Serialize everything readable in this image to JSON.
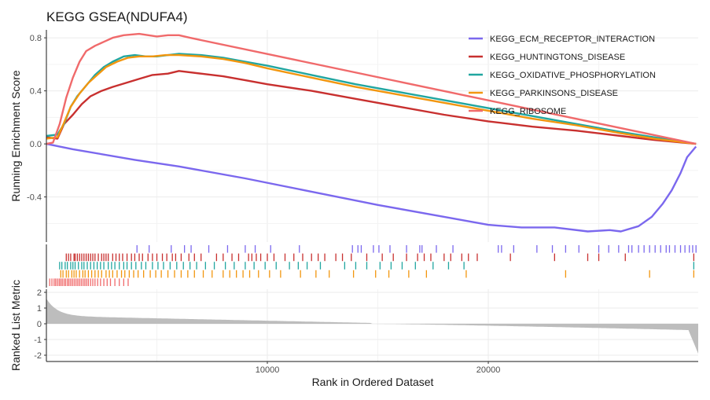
{
  "chart_data": {
    "type": "line",
    "title": "KEGG GSEA(NDUFA4)",
    "xlabel": "Rank in Ordered Dataset",
    "ylabel": "Running Enrichment Score",
    "ylabel_bottom": "Ranked List Metric",
    "xlim": [
      0,
      29500
    ],
    "ylim": [
      -0.74,
      0.86
    ],
    "metric_ylim": [
      -2.4,
      2.2
    ],
    "x_ticks": [
      10000,
      20000
    ],
    "x_tick_labels": [
      "10000",
      "20000"
    ],
    "y_ticks": [
      -0.4,
      0.0,
      0.4,
      0.8
    ],
    "y_tick_labels": [
      "-0.4",
      "0.0",
      "0.4",
      "0.8"
    ],
    "metric_ticks": [
      -2,
      -1,
      0,
      1,
      2
    ],
    "metric_tick_labels": [
      "-2",
      "-1",
      "0",
      "1",
      "2"
    ],
    "grid": true,
    "legend_position": "top-right",
    "series": [
      {
        "name": "KEGG_ECM_RECEPTOR_INTERACTION",
        "color": "#7b68ee",
        "x": [
          0,
          1200,
          4000,
          6000,
          9000,
          12000,
          15000,
          18000,
          20000,
          21500,
          23000,
          24500,
          25500,
          26000,
          26800,
          27400,
          27900,
          28300,
          28700,
          29000,
          29400
        ],
        "y": [
          0.0,
          -0.04,
          -0.12,
          -0.17,
          -0.26,
          -0.36,
          -0.46,
          -0.55,
          -0.61,
          -0.63,
          -0.63,
          -0.66,
          -0.65,
          -0.66,
          -0.62,
          -0.55,
          -0.45,
          -0.35,
          -0.22,
          -0.1,
          -0.02
        ],
        "hits": [
          4100,
          4650,
          5650,
          6250,
          6550,
          7350,
          8200,
          9000,
          9450,
          10150,
          11450,
          13850,
          14100,
          14250,
          14800,
          15050,
          15550,
          16300,
          16900,
          17000,
          17650,
          18400,
          20450,
          20600,
          21150,
          22200,
          22900,
          23500,
          24100,
          25000,
          25450,
          25900,
          26350,
          26500,
          26800,
          27050,
          27300,
          27550,
          27800,
          28050,
          28200,
          28450,
          28700,
          28900,
          29100,
          29250,
          29400
        ]
      },
      {
        "name": "KEGG_HUNTINGTONS_DISEASE",
        "color": "#c8302f",
        "x": [
          0,
          500,
          800,
          1200,
          1600,
          2000,
          2500,
          3000,
          3600,
          4200,
          4800,
          5500,
          6000,
          7000,
          8000,
          9000,
          10000,
          12000,
          14000,
          16000,
          18000,
          20000,
          22000,
          24000,
          26000,
          27500,
          29400
        ],
        "y": [
          0.05,
          0.04,
          0.15,
          0.22,
          0.3,
          0.36,
          0.4,
          0.43,
          0.46,
          0.49,
          0.52,
          0.53,
          0.55,
          0.53,
          0.51,
          0.48,
          0.45,
          0.4,
          0.34,
          0.28,
          0.22,
          0.17,
          0.13,
          0.1,
          0.06,
          0.03,
          0.0
        ],
        "hits": [
          900,
          1000,
          1100,
          1250,
          1300,
          1400,
          1500,
          1600,
          1700,
          1800,
          1900,
          2000,
          2100,
          2200,
          2350,
          2500,
          2600,
          2700,
          2800,
          3000,
          3150,
          3300,
          3450,
          3650,
          3850,
          4000,
          4200,
          4350,
          4600,
          4800,
          5000,
          5250,
          5450,
          5700,
          5850,
          6100,
          6450,
          6700,
          7000,
          7700,
          8000,
          8400,
          8700,
          9150,
          9300,
          9500,
          9700,
          10000,
          10300,
          10800,
          11200,
          11600,
          12000,
          12300,
          12600,
          13100,
          13400,
          13800,
          14500,
          15200,
          15700,
          16300,
          16800,
          17100,
          17400,
          18000,
          18300,
          18800,
          19100,
          19500,
          21000,
          23000,
          24500,
          25000,
          26200,
          29300
        ]
      },
      {
        "name": "KEGG_OXIDATIVE_PHOSPHORYLATION",
        "color": "#21a6a0",
        "x": [
          0,
          500,
          800,
          1100,
          1400,
          1800,
          2200,
          2600,
          3000,
          3500,
          4000,
          4500,
          5000,
          5500,
          6000,
          7000,
          8000,
          9000,
          10000,
          12000,
          14000,
          16000,
          18000,
          20000,
          22000,
          24000,
          26000,
          27500,
          29400
        ],
        "y": [
          0.06,
          0.07,
          0.15,
          0.28,
          0.36,
          0.44,
          0.52,
          0.58,
          0.62,
          0.66,
          0.67,
          0.66,
          0.66,
          0.67,
          0.68,
          0.67,
          0.65,
          0.62,
          0.59,
          0.52,
          0.45,
          0.39,
          0.33,
          0.27,
          0.21,
          0.15,
          0.09,
          0.05,
          0.0
        ],
        "hits": [
          600,
          700,
          850,
          950,
          1100,
          1200,
          1300,
          1450,
          1600,
          1700,
          1850,
          2000,
          2150,
          2300,
          2450,
          2600,
          2800,
          2950,
          3100,
          3300,
          3500,
          3650,
          3850,
          4050,
          4300,
          4500,
          4800,
          5050,
          5300,
          5600,
          5900,
          6200,
          6500,
          6800,
          7200,
          7600,
          8100,
          8500,
          9000,
          9400,
          9900,
          10400,
          11000,
          11400,
          11800,
          12400,
          13500,
          14000,
          14500,
          15100,
          15600,
          16100,
          16700,
          17500,
          18200,
          18900,
          29300
        ]
      },
      {
        "name": "KEGG_PARKINSONS_DISEASE",
        "color": "#f2960f",
        "x": [
          0,
          500,
          800,
          1100,
          1500,
          1900,
          2300,
          2700,
          3200,
          3700,
          4200,
          4800,
          5400,
          6000,
          7000,
          8000,
          9000,
          10000,
          12000,
          14000,
          16000,
          18000,
          20000,
          22000,
          24000,
          26000,
          27500,
          29400
        ],
        "y": [
          0.04,
          0.05,
          0.16,
          0.28,
          0.38,
          0.46,
          0.52,
          0.58,
          0.62,
          0.65,
          0.66,
          0.66,
          0.67,
          0.67,
          0.66,
          0.64,
          0.61,
          0.57,
          0.5,
          0.43,
          0.37,
          0.31,
          0.25,
          0.19,
          0.14,
          0.08,
          0.04,
          0.0
        ],
        "hits": [
          650,
          750,
          900,
          1000,
          1150,
          1250,
          1350,
          1500,
          1650,
          1750,
          1900,
          2050,
          2200,
          2350,
          2500,
          2700,
          2850,
          3000,
          3200,
          3400,
          3550,
          3750,
          3950,
          4150,
          4400,
          4700,
          4950,
          5200,
          5500,
          5800,
          6100,
          6400,
          6700,
          7100,
          7500,
          8000,
          8300,
          8600,
          8900,
          9200,
          9600,
          10100,
          10600,
          11500,
          12200,
          12800,
          13900,
          14900,
          15500,
          16400,
          17200,
          19000,
          23500,
          27300,
          29300
        ]
      },
      {
        "name": "KEGG_RIBOSOME",
        "color": "#f06a6b",
        "x": [
          0,
          300,
          600,
          900,
          1200,
          1500,
          1800,
          2200,
          2600,
          3000,
          3500,
          4200,
          5000,
          5500,
          6000,
          6500,
          29400
        ],
        "y": [
          0.0,
          0.01,
          0.15,
          0.35,
          0.5,
          0.62,
          0.7,
          0.74,
          0.77,
          0.8,
          0.82,
          0.83,
          0.81,
          0.82,
          0.82,
          0.8,
          0.0
        ],
        "hits": [
          150,
          250,
          350,
          420,
          500,
          580,
          650,
          720,
          800,
          870,
          950,
          1020,
          1100,
          1180,
          1260,
          1340,
          1420,
          1500,
          1580,
          1660,
          1740,
          1820,
          1900,
          2000,
          2100,
          2200,
          2320,
          2450,
          2600,
          2750,
          2900,
          3100,
          3300,
          3500,
          3700
        ]
      }
    ]
  }
}
